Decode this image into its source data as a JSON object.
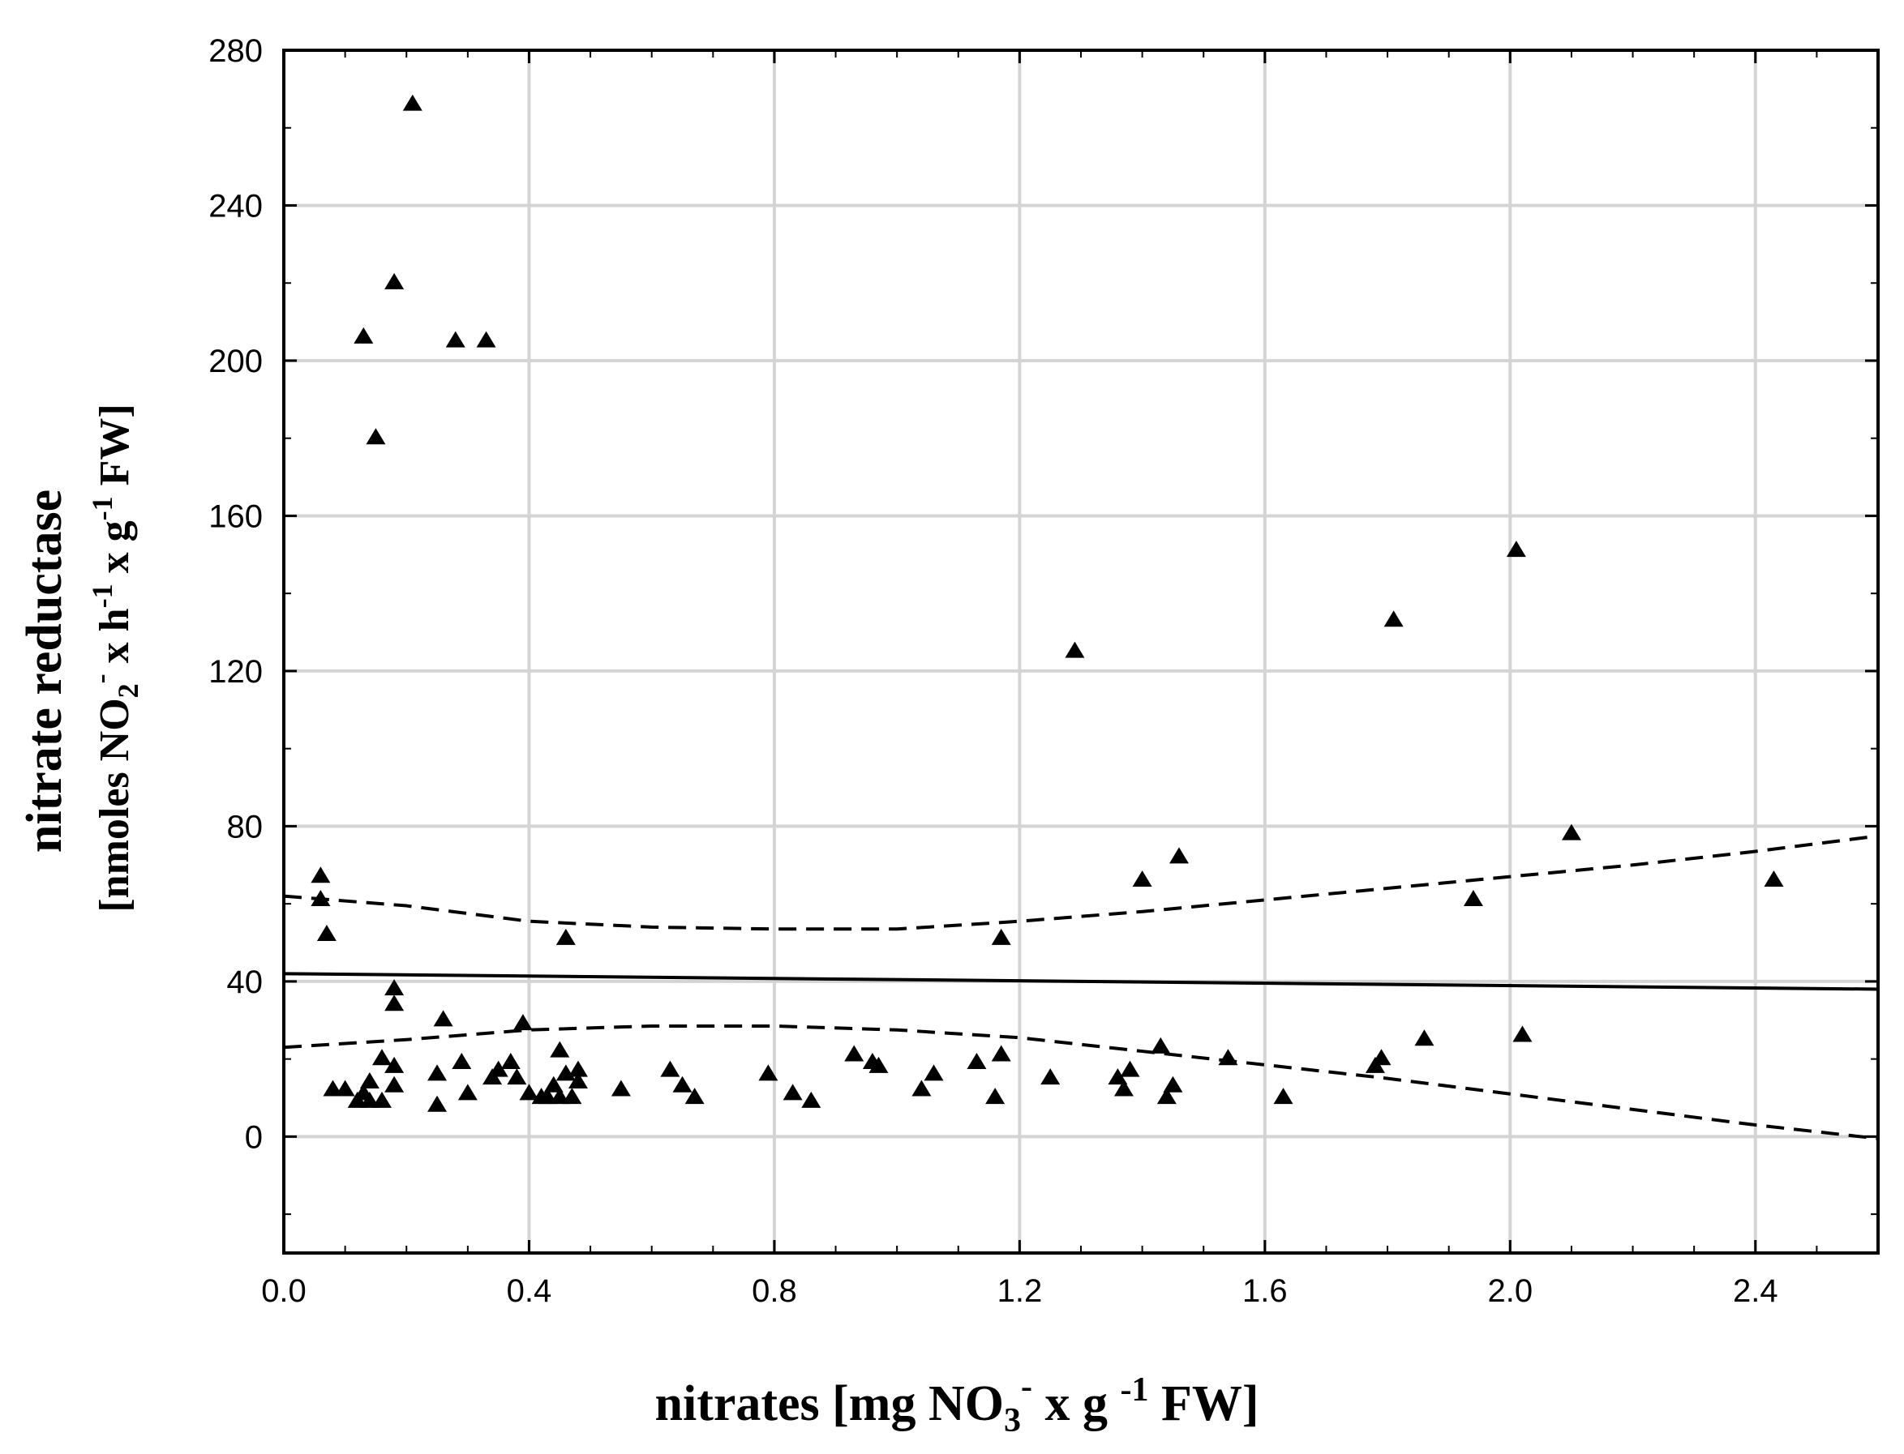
{
  "chart_data": {
    "type": "scatter",
    "xlabel": {
      "main": "nitrates [mg NO",
      "sub": "3",
      "sup": "-",
      "rest1": " x g ",
      "sup2": "-1",
      "rest2": " FW]"
    },
    "ylabel": {
      "line1": "nitrate reductase",
      "line2_a": "[nmoles NO",
      "line2_sub": "2",
      "line2_sup": "-",
      "line2_b": " x h",
      "line2_sup2": "-1",
      "line2_c": " x g",
      "line2_sup3": "-1",
      "line2_d": " FW]"
    },
    "xlim": [
      0.0,
      2.6
    ],
    "ylim": [
      -30,
      280
    ],
    "xticks": [
      0.0,
      0.4,
      0.8,
      1.2,
      1.6,
      2.0,
      2.4
    ],
    "xtick_labels": [
      "0.0",
      "0.4",
      "0.8",
      "1.2",
      "1.6",
      "2.0",
      "2.4"
    ],
    "yticks": [
      0,
      40,
      80,
      120,
      160,
      200,
      240,
      280
    ],
    "ytick_labels": [
      "0",
      "40",
      "80",
      "120",
      "160",
      "200",
      "240",
      "280"
    ],
    "grid": true,
    "marker": "triangle",
    "points": [
      [
        0.06,
        67
      ],
      [
        0.06,
        61
      ],
      [
        0.07,
        52
      ],
      [
        0.08,
        12
      ],
      [
        0.1,
        12
      ],
      [
        0.12,
        9
      ],
      [
        0.13,
        11
      ],
      [
        0.14,
        14
      ],
      [
        0.14,
        9
      ],
      [
        0.16,
        9
      ],
      [
        0.16,
        20
      ],
      [
        0.18,
        38
      ],
      [
        0.18,
        34
      ],
      [
        0.18,
        18
      ],
      [
        0.18,
        13
      ],
      [
        0.13,
        206
      ],
      [
        0.15,
        180
      ],
      [
        0.18,
        220
      ],
      [
        0.21,
        266
      ],
      [
        0.28,
        205
      ],
      [
        0.33,
        205
      ],
      [
        0.25,
        8
      ],
      [
        0.25,
        16
      ],
      [
        0.26,
        30
      ],
      [
        0.29,
        19
      ],
      [
        0.3,
        11
      ],
      [
        0.34,
        15
      ],
      [
        0.35,
        17
      ],
      [
        0.37,
        19
      ],
      [
        0.38,
        15
      ],
      [
        0.39,
        29
      ],
      [
        0.4,
        11
      ],
      [
        0.42,
        10
      ],
      [
        0.43,
        10
      ],
      [
        0.44,
        13
      ],
      [
        0.45,
        10
      ],
      [
        0.45,
        22
      ],
      [
        0.46,
        16
      ],
      [
        0.46,
        51
      ],
      [
        0.47,
        10
      ],
      [
        0.48,
        17
      ],
      [
        0.48,
        14
      ],
      [
        0.55,
        12
      ],
      [
        0.63,
        17
      ],
      [
        0.65,
        13
      ],
      [
        0.67,
        10
      ],
      [
        0.79,
        16
      ],
      [
        0.83,
        11
      ],
      [
        0.86,
        9
      ],
      [
        0.93,
        21
      ],
      [
        0.96,
        19
      ],
      [
        0.97,
        18
      ],
      [
        1.04,
        12
      ],
      [
        1.06,
        16
      ],
      [
        1.13,
        19
      ],
      [
        1.16,
        10
      ],
      [
        1.17,
        21
      ],
      [
        1.17,
        51
      ],
      [
        1.25,
        15
      ],
      [
        1.29,
        125
      ],
      [
        1.36,
        15
      ],
      [
        1.37,
        12
      ],
      [
        1.38,
        17
      ],
      [
        1.4,
        66
      ],
      [
        1.43,
        23
      ],
      [
        1.44,
        10
      ],
      [
        1.45,
        13
      ],
      [
        1.46,
        72
      ],
      [
        1.54,
        20
      ],
      [
        1.63,
        10
      ],
      [
        1.78,
        18
      ],
      [
        1.79,
        20
      ],
      [
        1.81,
        133
      ],
      [
        1.86,
        25
      ],
      [
        1.94,
        61
      ],
      [
        2.01,
        151
      ],
      [
        2.02,
        26
      ],
      [
        2.1,
        78
      ],
      [
        2.43,
        66
      ]
    ],
    "series": [
      {
        "name": "regression",
        "style": "solid",
        "x": [
          0.0,
          2.6
        ],
        "y": [
          42.0,
          38.0
        ]
      },
      {
        "name": "upper confidence band",
        "style": "dashed",
        "x": [
          0.0,
          0.2,
          0.4,
          0.6,
          0.8,
          1.0,
          1.2,
          1.4,
          1.6,
          1.8,
          2.0,
          2.2,
          2.4,
          2.6
        ],
        "y": [
          62,
          59.5,
          55.5,
          54,
          53.5,
          53.5,
          55.5,
          58,
          61,
          64,
          67,
          70,
          73.5,
          77.5
        ]
      },
      {
        "name": "lower confidence band",
        "style": "dashed",
        "x": [
          0.0,
          0.2,
          0.4,
          0.6,
          0.8,
          1.0,
          1.2,
          1.4,
          1.6,
          1.8,
          2.0,
          2.2,
          2.4,
          2.6
        ],
        "y": [
          23,
          25,
          27.5,
          28.5,
          28.5,
          27.5,
          25.5,
          22,
          18.5,
          15,
          11,
          7,
          3,
          -0.5
        ]
      }
    ]
  }
}
